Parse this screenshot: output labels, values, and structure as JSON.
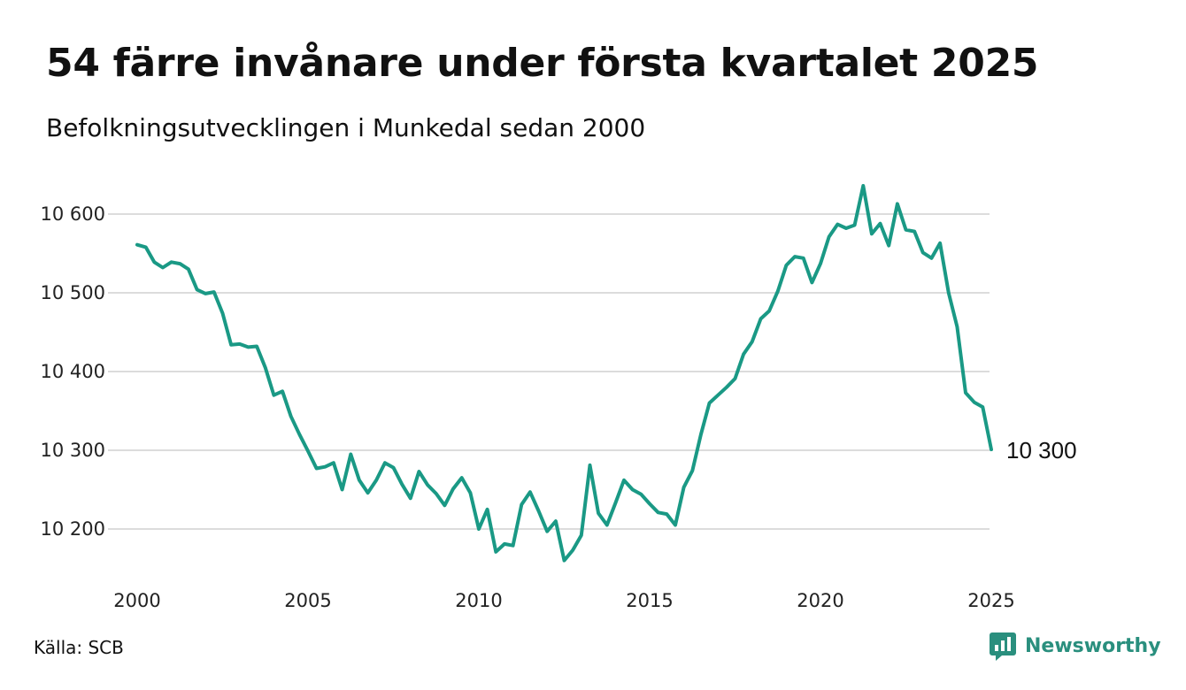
{
  "header": {
    "title": "54 färre invånare under första kvartalet 2025",
    "subtitle": "Befolkningsutvecklingen i Munkedal sedan 2000"
  },
  "footer": {
    "source": "Källa: SCB",
    "brand": "Newsworthy",
    "brand_icon": "bar-chart-speech-bubble-icon"
  },
  "colors": {
    "line": "#1a9985",
    "grid": "#dcdcdc",
    "brand": "#2a8f7e"
  },
  "chart_data": {
    "type": "line",
    "title": "54 färre invånare under första kvartalet 2025",
    "subtitle": "Befolkningsutvecklingen i Munkedal sedan 2000",
    "xlabel": "",
    "ylabel": "",
    "x_ticks": [
      2000,
      2005,
      2010,
      2015,
      2020,
      2025
    ],
    "y_ticks": [
      10200,
      10300,
      10400,
      10500,
      10600
    ],
    "y_tick_labels": [
      "10 200",
      "10 300",
      "10 400",
      "10 500",
      "10 600"
    ],
    "xlim": [
      2000,
      2025
    ],
    "ylim": [
      10150,
      10650
    ],
    "grid": true,
    "end_label": "10 300",
    "series": [
      {
        "x": [
          2000.0,
          2000.25,
          2000.5,
          2000.75,
          2001.0,
          2001.25,
          2001.5,
          2001.75,
          2002.0,
          2002.25,
          2002.5,
          2002.75,
          2003.0,
          2003.25,
          2003.5,
          2003.75,
          2004.0,
          2004.25,
          2004.5,
          2004.75,
          2005.0,
          2005.25,
          2005.5,
          2005.75,
          2006.0,
          2006.25,
          2006.5,
          2006.75,
          2007.0,
          2007.25,
          2007.5,
          2007.75,
          2008.0,
          2008.25,
          2008.5,
          2008.75,
          2009.0,
          2009.25,
          2009.5,
          2009.75,
          2010.0,
          2010.25,
          2010.5,
          2010.75,
          2011.0,
          2011.25,
          2011.5,
          2011.75,
          2012.0,
          2012.25,
          2012.5,
          2012.75,
          2013.0,
          2013.25,
          2013.5,
          2013.75,
          2014.0,
          2014.25,
          2014.5,
          2014.75,
          2015.0,
          2015.25,
          2015.5,
          2015.75,
          2016.0,
          2016.25,
          2016.5,
          2016.75,
          2017.0,
          2017.25,
          2017.5,
          2017.75,
          2018.0,
          2018.25,
          2018.5,
          2018.75,
          2019.0,
          2019.25,
          2019.5,
          2019.75,
          2020.0,
          2020.25,
          2020.5,
          2020.75,
          2021.0,
          2021.25,
          2021.5,
          2021.75,
          2022.0,
          2022.25,
          2022.5,
          2022.75,
          2023.0,
          2023.25,
          2023.5,
          2023.75,
          2024.0,
          2024.25,
          2024.5,
          2024.75,
          2025.0
        ],
        "values": [
          10561,
          10558,
          10539,
          10532,
          10539,
          10537,
          10530,
          10504,
          10499,
          10501,
          10474,
          10434,
          10435,
          10431,
          10432,
          10405,
          10370,
          10375,
          10343,
          10320,
          10299,
          10277,
          10279,
          10284,
          10250,
          10295,
          10262,
          10246,
          10262,
          10284,
          10278,
          10257,
          10239,
          10273,
          10256,
          10245,
          10230,
          10251,
          10265,
          10246,
          10200,
          10225,
          10171,
          10181,
          10179,
          10231,
          10247,
          10223,
          10197,
          10210,
          10160,
          10173,
          10192,
          10281,
          10220,
          10205,
          10233,
          10262,
          10250,
          10244,
          10232,
          10221,
          10219,
          10205,
          10253,
          10274,
          10320,
          10360,
          10370,
          10380,
          10391,
          10422,
          10438,
          10467,
          10477,
          10502,
          10535,
          10546,
          10544,
          10513,
          10537,
          10571,
          10587,
          10582,
          10586,
          10636,
          10575,
          10588,
          10560,
          10613,
          10580,
          10578,
          10551,
          10544,
          10563,
          10500,
          10457,
          10373,
          10361,
          10355,
          10301
        ]
      }
    ]
  }
}
